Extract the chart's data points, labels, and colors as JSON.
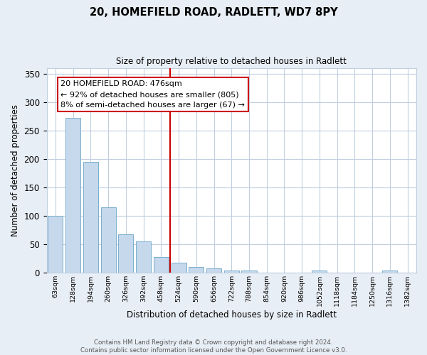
{
  "title": "20, HOMEFIELD ROAD, RADLETT, WD7 8PY",
  "subtitle": "Size of property relative to detached houses in Radlett",
  "xlabel": "Distribution of detached houses by size in Radlett",
  "ylabel": "Number of detached properties",
  "bin_labels": [
    "63sqm",
    "128sqm",
    "194sqm",
    "260sqm",
    "326sqm",
    "392sqm",
    "458sqm",
    "524sqm",
    "590sqm",
    "656sqm",
    "722sqm",
    "788sqm",
    "854sqm",
    "920sqm",
    "986sqm",
    "1052sqm",
    "1118sqm",
    "1184sqm",
    "1250sqm",
    "1316sqm",
    "1382sqm"
  ],
  "bar_heights": [
    100,
    272,
    195,
    115,
    68,
    55,
    28,
    18,
    10,
    8,
    4,
    4,
    0,
    0,
    0,
    4,
    0,
    0,
    0,
    4,
    0
  ],
  "bar_color": "#c5d8ec",
  "bar_edge_color": "#7aaecc",
  "vline_color": "#cc0000",
  "annotation_line1": "20 HOMEFIELD ROAD: 476sqm",
  "annotation_line2": "← 92% of detached houses are smaller (805)",
  "annotation_line3": "8% of semi-detached houses are larger (67) →",
  "annotation_box_edge": "#cc0000",
  "annotation_box_face": "#ffffff",
  "ylim": [
    0,
    360
  ],
  "yticks": [
    0,
    50,
    100,
    150,
    200,
    250,
    300,
    350
  ],
  "footer_line1": "Contains HM Land Registry data © Crown copyright and database right 2024.",
  "footer_line2": "Contains public sector information licensed under the Open Government Licence v3.0.",
  "bg_color": "#e8eef5",
  "plot_bg_color": "#ffffff",
  "grid_color": "#c0cfe0"
}
